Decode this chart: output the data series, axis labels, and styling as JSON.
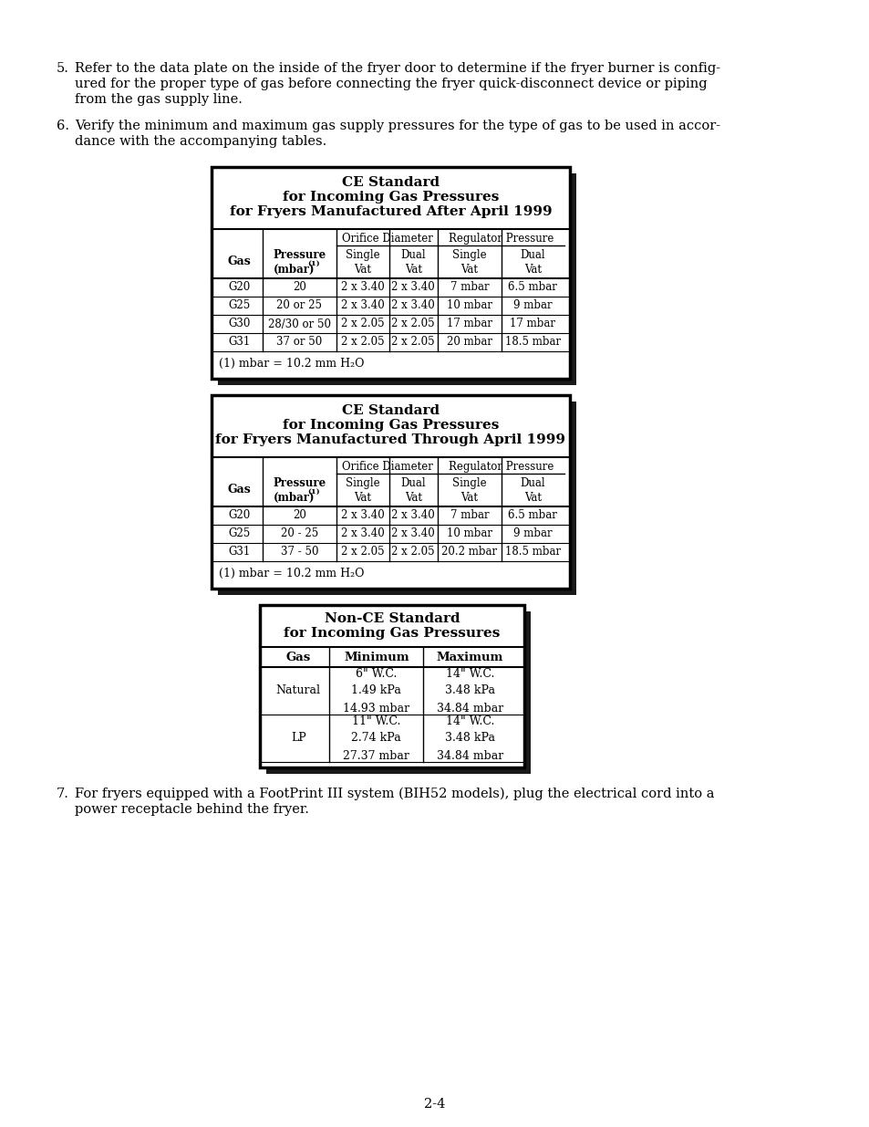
{
  "page_bg": "#ffffff",
  "text_color": "#000000",
  "para5_lines": [
    "5.  Refer to the data plate on the inside of the fryer door to determine if the fryer burner is config-",
    "     ured for the proper type of gas before connecting the fryer quick-disconnect device or piping",
    "     from the gas supply line."
  ],
  "para6_lines": [
    "6.  Verify the minimum and maximum gas supply pressures for the type of gas to be used in accor-",
    "     dance with the accompanying tables."
  ],
  "para7_lines": [
    "7.  For fryers equipped with a FootPrint III system (BIH52 models), plug the electrical cord into a",
    "     power receptacle behind the fryer."
  ],
  "table1_title1": "CE Standard",
  "table1_title2": "for Incoming Gas Pressures",
  "table1_title3": "for Fryers Manufactured After April 1999",
  "table1_rows": [
    [
      "G20",
      "20",
      "2 x 3.40",
      "2 x 3.40",
      "7 mbar",
      "6.5 mbar"
    ],
    [
      "G25",
      "20 or 25",
      "2 x 3.40",
      "2 x 3.40",
      "10 mbar",
      "9 mbar"
    ],
    [
      "G30",
      "28/30 or 50",
      "2 x 2.05",
      "2 x 2.05",
      "17 mbar",
      "17 mbar"
    ],
    [
      "G31",
      "37 or 50",
      "2 x 2.05",
      "2 x 2.05",
      "20 mbar",
      "18.5 mbar"
    ]
  ],
  "table1_footnote": "(1) mbar = 10.2 mm H₂O",
  "table2_title1": "CE Standard",
  "table2_title2": "for Incoming Gas Pressures",
  "table2_title3": "for Fryers Manufactured Through April 1999",
  "table2_rows": [
    [
      "G20",
      "20",
      "2 x 3.40",
      "2 x 3.40",
      "7 mbar",
      "6.5 mbar"
    ],
    [
      "G25",
      "20 - 25",
      "2 x 3.40",
      "2 x 3.40",
      "10 mbar",
      "9 mbar"
    ],
    [
      "G31",
      "37 - 50",
      "2 x 2.05",
      "2 x 2.05",
      "20.2 mbar",
      "18.5 mbar"
    ]
  ],
  "table2_footnote": "(1) mbar = 10.2 mm H₂O",
  "table3_title1": "Non-CE Standard",
  "table3_title2": "for Incoming Gas Pressures",
  "table3_col_headers": [
    "Gas",
    "Minimum",
    "Maximum"
  ],
  "table3_rows": [
    [
      "Natural",
      "6\" W.C.\n1.49 kPa\n14.93 mbar",
      "14\" W.C.\n3.48 kPa\n34.84 mbar"
    ],
    [
      "LP",
      "11\" W.C.\n2.74 kPa\n27.37 mbar",
      "14\" W.C.\n3.48 kPa\n34.84 mbar"
    ]
  ],
  "page_num": "2-4"
}
